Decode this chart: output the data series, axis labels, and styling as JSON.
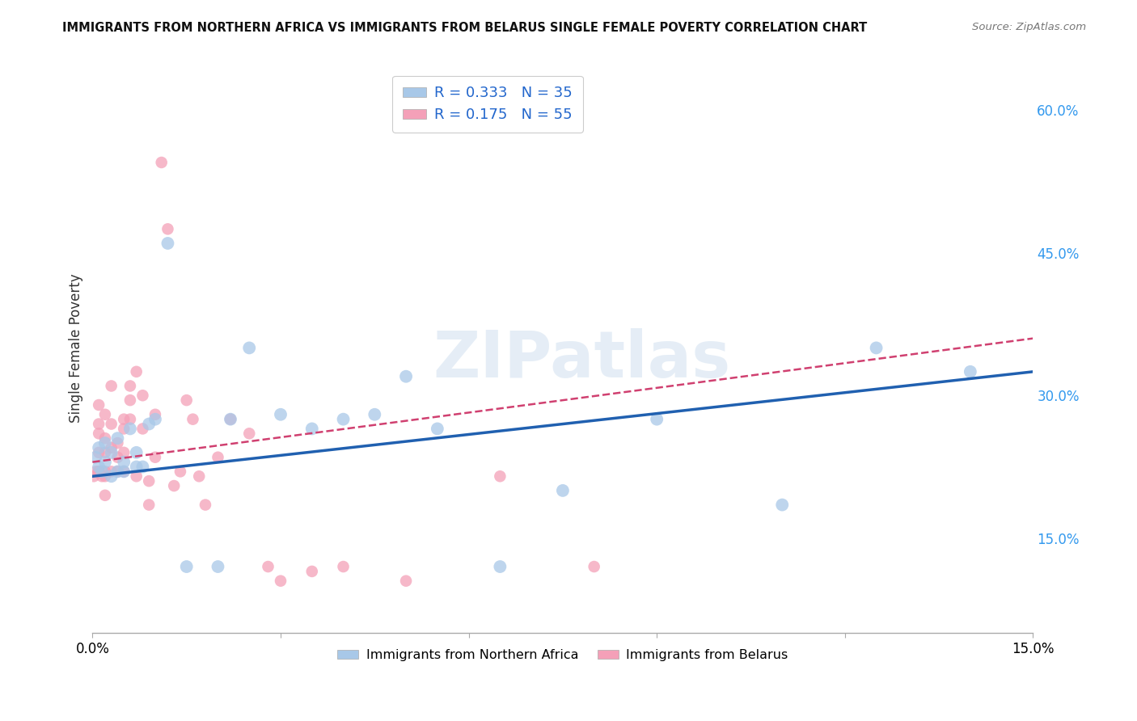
{
  "title": "IMMIGRANTS FROM NORTHERN AFRICA VS IMMIGRANTS FROM BELARUS SINGLE FEMALE POVERTY CORRELATION CHART",
  "source": "Source: ZipAtlas.com",
  "ylabel": "Single Female Poverty",
  "xlim": [
    0.0,
    0.15
  ],
  "ylim": [
    0.05,
    0.65
  ],
  "yticks_right": [
    0.15,
    0.3,
    0.45,
    0.6
  ],
  "ytick_labels_right": [
    "15.0%",
    "30.0%",
    "45.0%",
    "60.0%"
  ],
  "series1_color": "#a8c8e8",
  "series2_color": "#f4a0b8",
  "series1_line_color": "#2060b0",
  "series2_line_color": "#d04070",
  "series1_label": "Immigrants from Northern Africa",
  "series2_label": "Immigrants from Belarus",
  "legend_R1": "0.333",
  "legend_N1": "35",
  "legend_R2": "0.175",
  "legend_N2": "55",
  "background_color": "#ffffff",
  "grid_color": "#d0d0d0",
  "series1_x": [
    0.0005,
    0.001,
    0.001,
    0.0015,
    0.002,
    0.002,
    0.003,
    0.003,
    0.004,
    0.004,
    0.005,
    0.005,
    0.006,
    0.007,
    0.007,
    0.008,
    0.009,
    0.01,
    0.012,
    0.015,
    0.02,
    0.022,
    0.025,
    0.03,
    0.035,
    0.04,
    0.045,
    0.05,
    0.055,
    0.065,
    0.075,
    0.09,
    0.11,
    0.125,
    0.14
  ],
  "series1_y": [
    0.235,
    0.225,
    0.245,
    0.22,
    0.23,
    0.25,
    0.215,
    0.24,
    0.22,
    0.255,
    0.23,
    0.22,
    0.265,
    0.225,
    0.24,
    0.225,
    0.27,
    0.275,
    0.46,
    0.12,
    0.12,
    0.275,
    0.35,
    0.28,
    0.265,
    0.275,
    0.28,
    0.32,
    0.265,
    0.12,
    0.2,
    0.275,
    0.185,
    0.35,
    0.325
  ],
  "series2_x": [
    0.0002,
    0.0005,
    0.001,
    0.001,
    0.001,
    0.001,
    0.001,
    0.001,
    0.0015,
    0.002,
    0.002,
    0.002,
    0.002,
    0.002,
    0.002,
    0.003,
    0.003,
    0.003,
    0.003,
    0.004,
    0.004,
    0.004,
    0.005,
    0.005,
    0.005,
    0.005,
    0.006,
    0.006,
    0.006,
    0.007,
    0.007,
    0.008,
    0.008,
    0.009,
    0.009,
    0.01,
    0.01,
    0.011,
    0.012,
    0.013,
    0.014,
    0.015,
    0.016,
    0.017,
    0.018,
    0.02,
    0.022,
    0.025,
    0.028,
    0.03,
    0.035,
    0.04,
    0.05,
    0.065,
    0.08
  ],
  "series2_y": [
    0.215,
    0.22,
    0.22,
    0.24,
    0.26,
    0.27,
    0.29,
    0.22,
    0.215,
    0.22,
    0.24,
    0.255,
    0.28,
    0.215,
    0.195,
    0.22,
    0.245,
    0.27,
    0.31,
    0.235,
    0.25,
    0.22,
    0.22,
    0.24,
    0.275,
    0.265,
    0.275,
    0.295,
    0.31,
    0.325,
    0.215,
    0.265,
    0.3,
    0.185,
    0.21,
    0.235,
    0.28,
    0.545,
    0.475,
    0.205,
    0.22,
    0.295,
    0.275,
    0.215,
    0.185,
    0.235,
    0.275,
    0.26,
    0.12,
    0.105,
    0.115,
    0.12,
    0.105,
    0.215,
    0.12
  ],
  "line1_x0": 0.0,
  "line1_y0": 0.215,
  "line1_x1": 0.15,
  "line1_y1": 0.325,
  "line2_x0": 0.0,
  "line2_y0": 0.23,
  "line2_x1": 0.15,
  "line2_y1": 0.36
}
